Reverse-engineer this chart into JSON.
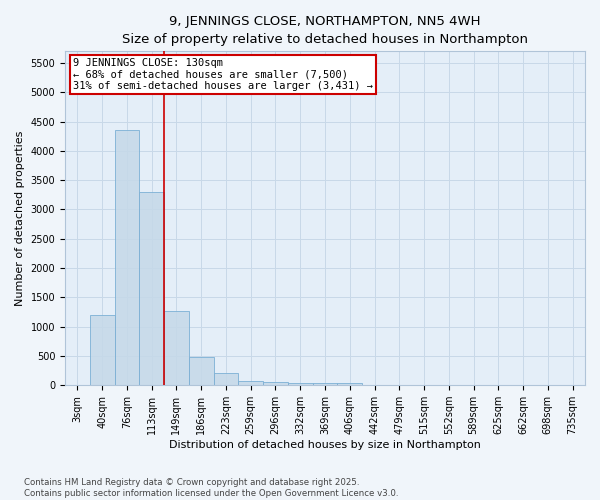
{
  "title": "9, JENNINGS CLOSE, NORTHAMPTON, NN5 4WH",
  "subtitle": "Size of property relative to detached houses in Northampton",
  "xlabel": "Distribution of detached houses by size in Northampton",
  "ylabel": "Number of detached properties",
  "categories": [
    "3sqm",
    "40sqm",
    "76sqm",
    "113sqm",
    "149sqm",
    "186sqm",
    "223sqm",
    "259sqm",
    "296sqm",
    "332sqm",
    "369sqm",
    "406sqm",
    "442sqm",
    "479sqm",
    "515sqm",
    "552sqm",
    "589sqm",
    "625sqm",
    "662sqm",
    "698sqm",
    "735sqm"
  ],
  "bar_heights": [
    0,
    1200,
    4350,
    3300,
    1270,
    490,
    210,
    80,
    50,
    40,
    30,
    40,
    0,
    0,
    0,
    0,
    0,
    0,
    0,
    0,
    0
  ],
  "bar_color": "#c5d8e8",
  "bar_edge_color": "#7bafd4",
  "bar_alpha": 0.85,
  "vline_pos": 3.5,
  "vline_color": "#cc0000",
  "annotation_text": "9 JENNINGS CLOSE: 130sqm\n← 68% of detached houses are smaller (7,500)\n31% of semi-detached houses are larger (3,431) →",
  "annotation_box_facecolor": "#ffffff",
  "annotation_box_edgecolor": "#cc0000",
  "ylim": [
    0,
    5700
  ],
  "yticks": [
    0,
    500,
    1000,
    1500,
    2000,
    2500,
    3000,
    3500,
    4000,
    4500,
    5000,
    5500
  ],
  "grid_color": "#c8d8e8",
  "plot_bg_color": "#e4eef8",
  "fig_bg_color": "#f0f5fa",
  "title_fontsize": 9.5,
  "subtitle_fontsize": 8.5,
  "axis_label_fontsize": 8,
  "tick_fontsize": 7,
  "annotation_fontsize": 7.5,
  "footer_line1": "Contains HM Land Registry data © Crown copyright and database right 2025.",
  "footer_line2": "Contains public sector information licensed under the Open Government Licence v3.0."
}
